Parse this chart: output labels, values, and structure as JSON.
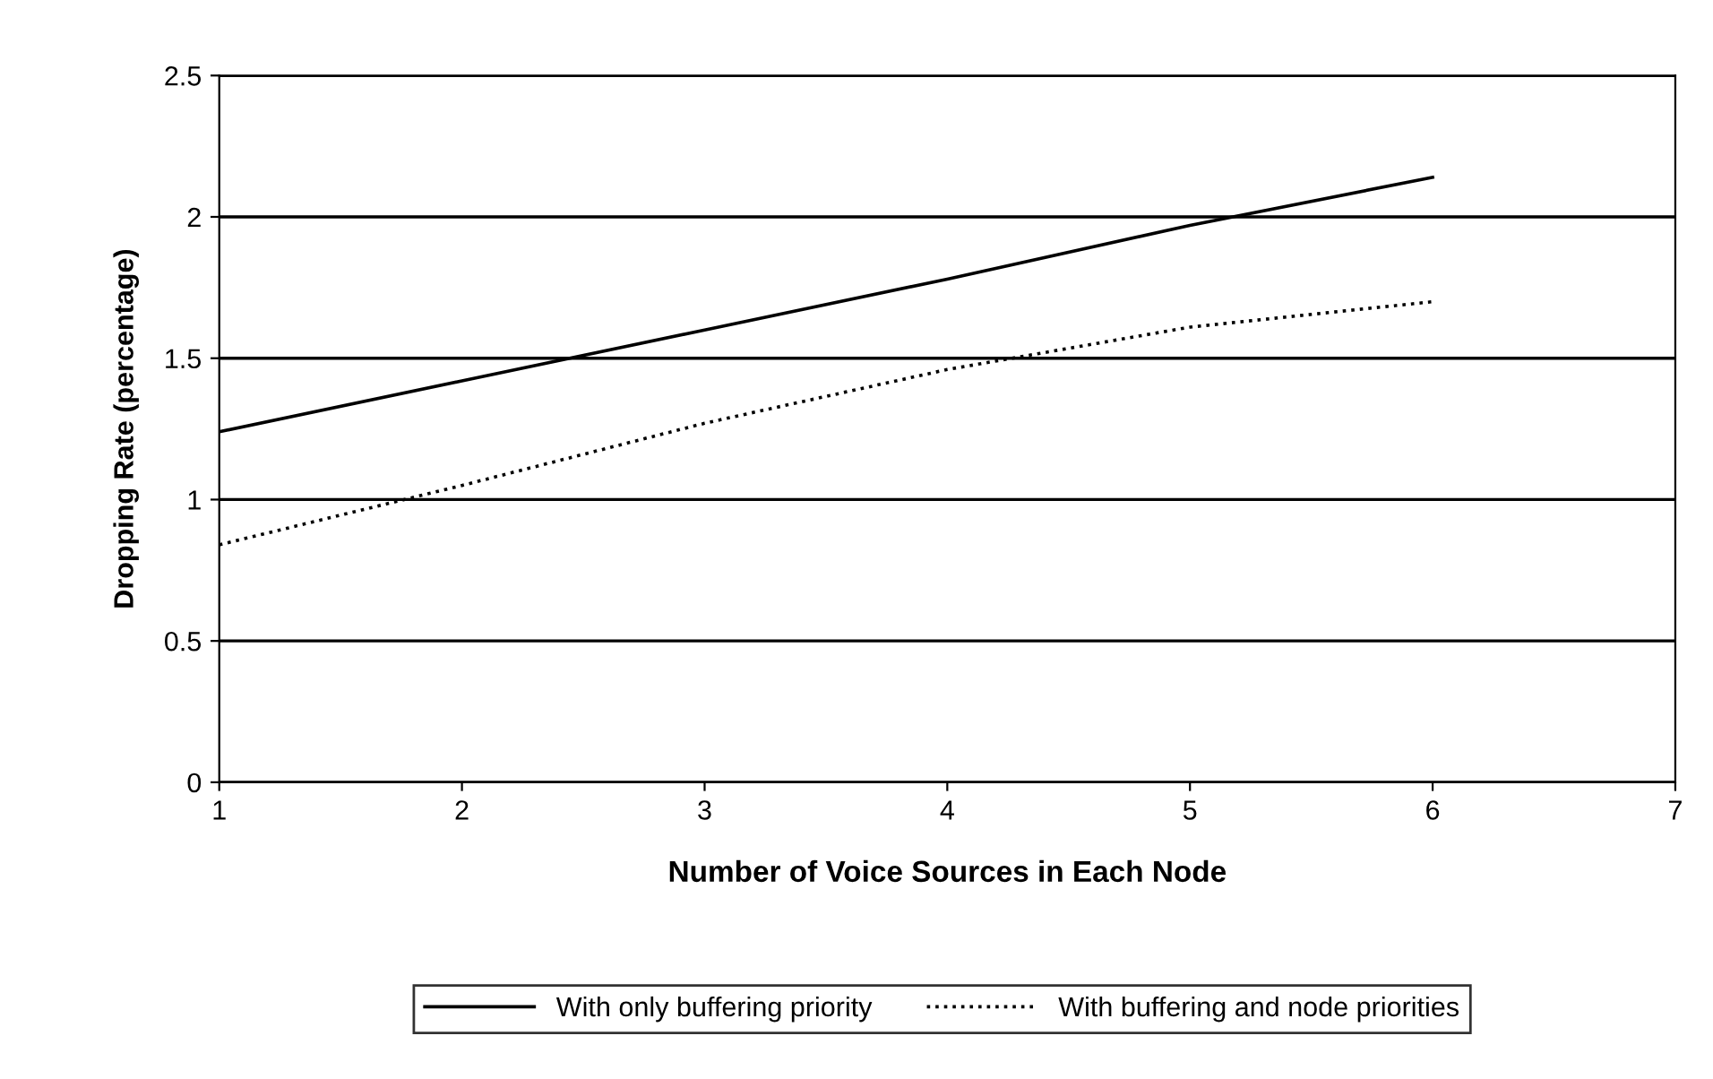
{
  "chart_data": {
    "type": "line",
    "xlabel": "Number of Voice Sources in Each Node",
    "ylabel": "Dropping Rate (percentage)",
    "x": [
      1,
      2,
      3,
      4,
      5,
      6
    ],
    "series": [
      {
        "name": "With only buffering priority",
        "color": "#000000",
        "line_style": "solid",
        "values": [
          1.24,
          1.42,
          1.6,
          1.78,
          1.97,
          2.14
        ]
      },
      {
        "name": "With buffering and node priorities",
        "color": "#000000",
        "line_style": "dotted",
        "values": [
          0.84,
          1.05,
          1.27,
          1.46,
          1.61,
          1.7
        ]
      }
    ],
    "xlim": [
      1,
      7
    ],
    "xticks": [
      1,
      2,
      3,
      4,
      5,
      6,
      7
    ],
    "ylim": [
      0,
      2.5
    ],
    "yticks": [
      0,
      0.5,
      1,
      1.5,
      2,
      2.5
    ],
    "grid": "y",
    "legend": "bottom",
    "marker": "none"
  }
}
